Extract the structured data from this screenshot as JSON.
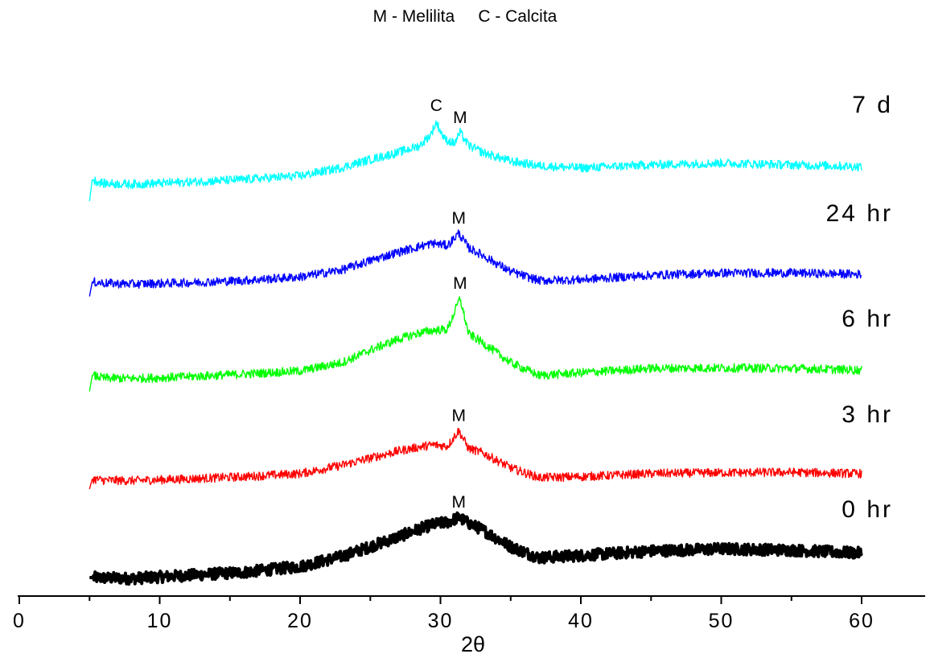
{
  "chart_data": {
    "type": "line",
    "title": "M - Melilita     C - Calcita",
    "xlabel": "2θ",
    "ylabel": "",
    "xlim": [
      0,
      65
    ],
    "x_ticks": [
      0,
      10,
      20,
      30,
      40,
      50,
      60
    ],
    "x_tick_labels": [
      "0",
      "10",
      "20",
      "30",
      "40",
      "50",
      "60"
    ],
    "y_axis_visible": false,
    "grid": false,
    "series": [
      {
        "name": "0 hr",
        "color": "#000000",
        "x": [
          5,
          8,
          12,
          16,
          20,
          23,
          25,
          27,
          28.5,
          29.5,
          30.5,
          31.3,
          32,
          33,
          35,
          37,
          40,
          45,
          50,
          55,
          60
        ],
        "y": [
          0.0,
          -0.2,
          0.5,
          1.2,
          2.5,
          4.8,
          7.0,
          9.2,
          11.0,
          12.0,
          12.5,
          13.6,
          12.3,
          10.8,
          7.0,
          4.5,
          5.0,
          6.0,
          6.5,
          6.2,
          5.5
        ],
        "peaks": [
          {
            "x": 31.3,
            "label": "M"
          }
        ]
      },
      {
        "name": "3 hr",
        "color": "#ff0000",
        "x": [
          5,
          5.2,
          6,
          8,
          12,
          16,
          20,
          23,
          25,
          27,
          28.5,
          29.5,
          30.5,
          31.3,
          32,
          33,
          35,
          37,
          40,
          45,
          50,
          55,
          60
        ],
        "y": [
          -2.0,
          0.3,
          0.0,
          -0.1,
          0.3,
          0.8,
          1.5,
          3.4,
          5.0,
          6.6,
          7.5,
          8.0,
          7.7,
          11.2,
          7.2,
          6.2,
          2.8,
          0.6,
          0.8,
          1.5,
          1.7,
          1.8,
          1.5
        ],
        "peaks": [
          {
            "x": 31.3,
            "label": "M"
          }
        ]
      },
      {
        "name": "6 hr",
        "color": "#00ff00",
        "x": [
          5,
          5.2,
          6,
          8,
          12,
          16,
          20,
          23,
          25,
          27,
          28.5,
          29.5,
          30.5,
          31.4,
          32,
          33,
          35,
          37,
          40,
          45,
          50,
          55,
          60
        ],
        "y": [
          -3.0,
          0.6,
          0.0,
          -0.1,
          0.3,
          0.9,
          1.6,
          3.5,
          6.3,
          8.8,
          10.2,
          10.8,
          11.0,
          18.0,
          10.0,
          8.0,
          3.5,
          0.6,
          1.2,
          2.2,
          2.3,
          2.2,
          1.8
        ],
        "peaks": [
          {
            "x": 31.4,
            "label": "M"
          }
        ]
      },
      {
        "name": "24 hr",
        "color": "#0000ff",
        "x": [
          5,
          5.2,
          6,
          8,
          12,
          16,
          20,
          23,
          25,
          27,
          28.5,
          29.5,
          30.5,
          31.3,
          32,
          33,
          35,
          37,
          40,
          45,
          50,
          55,
          60
        ],
        "y": [
          -3.0,
          0.3,
          0.0,
          -0.2,
          0.1,
          0.6,
          1.4,
          3.0,
          5.1,
          7.0,
          8.3,
          9.0,
          8.5,
          11.3,
          8.0,
          6.3,
          2.6,
          0.6,
          0.8,
          1.8,
          2.3,
          2.3,
          2.0
        ],
        "peaks": [
          {
            "x": 31.3,
            "label": "M"
          }
        ]
      },
      {
        "name": "7 d",
        "color": "#00ffff",
        "x": [
          5,
          5.2,
          6,
          8,
          12,
          16,
          20,
          23,
          25,
          27,
          28.5,
          29.3,
          29.7,
          30.3,
          31.0,
          31.4,
          32,
          33,
          35,
          37,
          40,
          45,
          50,
          55,
          60
        ],
        "y": [
          -4.0,
          0.8,
          0.0,
          -0.2,
          0.3,
          0.9,
          1.7,
          3.6,
          5.4,
          7.0,
          8.5,
          11.0,
          13.8,
          10.0,
          9.0,
          11.5,
          8.6,
          7.0,
          5.0,
          4.0,
          3.5,
          4.2,
          4.6,
          4.2,
          3.8
        ],
        "peaks": [
          {
            "x": 29.7,
            "label": "C"
          },
          {
            "x": 31.4,
            "label": "M"
          }
        ]
      }
    ]
  }
}
